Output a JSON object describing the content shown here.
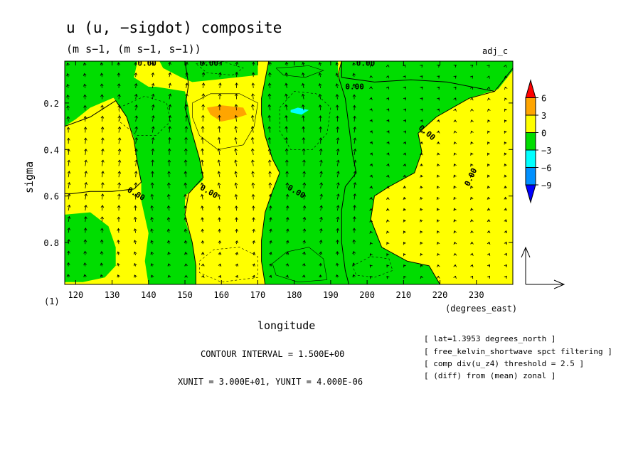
{
  "chart_data": {
    "type": "heatmap",
    "title": "u (u, −sigdot) composite",
    "subtitle": "(m s−1, (m s−1, s−1))",
    "tag": "adj_c",
    "xlabel": "longitude",
    "x_unit": "(degrees_east)",
    "ylabel": "sigma",
    "y_note": "(1)",
    "xlim": [
      117,
      240
    ],
    "ylim": [
      0.02,
      0.98
    ],
    "y_reversed": true,
    "x_ticks": [
      120,
      130,
      140,
      150,
      160,
      170,
      180,
      190,
      200,
      210,
      220,
      230
    ],
    "y_ticks": [
      0.2,
      0.4,
      0.6,
      0.8
    ],
    "colorbar": {
      "labels": [
        "6",
        "3",
        "0",
        "−3",
        "−6",
        "−9"
      ],
      "colors": [
        "#ff0000",
        "#ffa500",
        "#ffff00",
        "#00dd00",
        "#00ffff",
        "#0090ff",
        "#0000ff"
      ]
    },
    "zero_contour_label": "0.00",
    "zero_contours": [
      {
        "side": "left",
        "points": [
          [
            117,
            0.3
          ],
          [
            124,
            0.26
          ],
          [
            128,
            0.22
          ],
          [
            131,
            0.19
          ],
          [
            134,
            0.26
          ],
          [
            136,
            0.36
          ],
          [
            137,
            0.46
          ],
          [
            138,
            0.54
          ],
          [
            136,
            0.57
          ],
          [
            130,
            0.58
          ],
          [
            124,
            0.58
          ],
          [
            119,
            0.59
          ],
          [
            117,
            0.59
          ]
        ]
      },
      {
        "side": "center",
        "points": [
          [
            150,
            0.02
          ],
          [
            151,
            0.12
          ],
          [
            150,
            0.22
          ],
          [
            152,
            0.33
          ],
          [
            154,
            0.44
          ],
          [
            155,
            0.52
          ],
          [
            151,
            0.59
          ],
          [
            150,
            0.68
          ],
          [
            152,
            0.8
          ],
          [
            153,
            0.9
          ],
          [
            153,
            0.98
          ]
        ]
      },
      {
        "side": "center",
        "points": [
          [
            173,
            0.02
          ],
          [
            172,
            0.1
          ],
          [
            171,
            0.18
          ],
          [
            171,
            0.25
          ],
          [
            172,
            0.34
          ],
          [
            174,
            0.44
          ],
          [
            176,
            0.5
          ],
          [
            174,
            0.58
          ],
          [
            172,
            0.67
          ],
          [
            171,
            0.79
          ],
          [
            171,
            0.88
          ],
          [
            172,
            0.98
          ]
        ]
      },
      {
        "side": "right",
        "points": [
          [
            193,
            0.02
          ],
          [
            192,
            0.08
          ],
          [
            194,
            0.18
          ],
          [
            195,
            0.3
          ],
          [
            196,
            0.42
          ],
          [
            197,
            0.5
          ],
          [
            194,
            0.56
          ],
          [
            193,
            0.66
          ],
          [
            193,
            0.8
          ],
          [
            194,
            0.92
          ],
          [
            195,
            0.98
          ]
        ]
      },
      {
        "side": "right",
        "points": [
          [
            193,
            0.02
          ],
          [
            193,
            0.09
          ],
          [
            202,
            0.11
          ],
          [
            212,
            0.1
          ],
          [
            222,
            0.11
          ],
          [
            235,
            0.15
          ],
          [
            238,
            0.09
          ],
          [
            240,
            0.05
          ]
        ]
      },
      {
        "side": "right",
        "points": [
          [
            235,
            0.15
          ],
          [
            228,
            0.18
          ],
          [
            219,
            0.26
          ],
          [
            214,
            0.33
          ],
          [
            215,
            0.41
          ],
          [
            213,
            0.5
          ],
          [
            206,
            0.56
          ],
          [
            202,
            0.6
          ],
          [
            201,
            0.7
          ],
          [
            204,
            0.82
          ],
          [
            211,
            0.88
          ],
          [
            217,
            0.9
          ],
          [
            220,
            0.98
          ]
        ]
      }
    ],
    "regions": [
      {
        "value_range": "0 to 3",
        "color": "#ffff00",
        "points": "background"
      },
      {
        "value_range": "-3 to 0",
        "color": "#00dd00",
        "points": [
          [
            117,
            0.02
          ],
          [
            137,
            0.02
          ],
          [
            136,
            0.09
          ],
          [
            140,
            0.13
          ],
          [
            134,
            0.16
          ],
          [
            130,
            0.18
          ],
          [
            124,
            0.22
          ],
          [
            120,
            0.27
          ],
          [
            117,
            0.3
          ]
        ]
      },
      {
        "value_range": "-3 to 0",
        "color": "#00dd00",
        "points": [
          [
            128,
            0.13
          ],
          [
            142,
            0.13
          ],
          [
            150,
            0.15
          ],
          [
            151,
            0.22
          ],
          [
            152,
            0.33
          ],
          [
            154,
            0.44
          ],
          [
            155,
            0.53
          ],
          [
            150,
            0.6
          ],
          [
            150,
            0.7
          ],
          [
            152,
            0.8
          ],
          [
            153,
            0.9
          ],
          [
            153,
            0.98
          ],
          [
            140,
            0.98
          ],
          [
            139,
            0.88
          ],
          [
            140,
            0.76
          ],
          [
            138,
            0.62
          ],
          [
            138,
            0.54
          ],
          [
            137,
            0.46
          ],
          [
            136,
            0.35
          ],
          [
            134,
            0.26
          ],
          [
            131,
            0.19
          ]
        ]
      },
      {
        "value_range": "-3 to 0",
        "color": "#00dd00",
        "points": [
          [
            117,
            0.68
          ],
          [
            124,
            0.67
          ],
          [
            129,
            0.73
          ],
          [
            131,
            0.82
          ],
          [
            131,
            0.9
          ],
          [
            128,
            0.95
          ],
          [
            122,
            0.97
          ],
          [
            117,
            0.97
          ]
        ]
      },
      {
        "value_range": "-3 to 0",
        "color": "#00dd00",
        "points": [
          [
            143,
            0.02
          ],
          [
            170,
            0.02
          ],
          [
            170,
            0.08
          ],
          [
            158,
            0.1
          ],
          [
            152,
            0.11
          ],
          [
            149,
            0.09
          ],
          [
            144,
            0.05
          ]
        ]
      },
      {
        "value_range": "-3 to 0",
        "color": "#00dd00",
        "points": [
          [
            173,
            0.02
          ],
          [
            192,
            0.02
          ],
          [
            192,
            0.1
          ],
          [
            194,
            0.18
          ],
          [
            195,
            0.3
          ],
          [
            196,
            0.42
          ],
          [
            197,
            0.5
          ],
          [
            194,
            0.56
          ],
          [
            193,
            0.66
          ],
          [
            193,
            0.8
          ],
          [
            194,
            0.92
          ],
          [
            195,
            0.98
          ],
          [
            172,
            0.98
          ],
          [
            171,
            0.88
          ],
          [
            171,
            0.79
          ],
          [
            172,
            0.67
          ],
          [
            174,
            0.58
          ],
          [
            176,
            0.5
          ],
          [
            174,
            0.44
          ],
          [
            172,
            0.34
          ],
          [
            171,
            0.25
          ],
          [
            171,
            0.18
          ],
          [
            172,
            0.1
          ]
        ]
      },
      {
        "value_range": "-3 to 0",
        "color": "#00dd00",
        "points": [
          [
            193,
            0.02
          ],
          [
            240,
            0.02
          ],
          [
            240,
            0.06
          ],
          [
            236,
            0.14
          ],
          [
            228,
            0.18
          ],
          [
            219,
            0.26
          ],
          [
            214,
            0.33
          ],
          [
            215,
            0.41
          ],
          [
            213,
            0.5
          ],
          [
            206,
            0.56
          ],
          [
            202,
            0.6
          ],
          [
            201,
            0.7
          ],
          [
            204,
            0.82
          ],
          [
            211,
            0.88
          ],
          [
            217,
            0.9
          ],
          [
            220,
            0.98
          ],
          [
            195,
            0.98
          ],
          [
            194,
            0.92
          ],
          [
            193,
            0.8
          ],
          [
            193,
            0.66
          ],
          [
            194,
            0.56
          ],
          [
            197,
            0.5
          ],
          [
            196,
            0.42
          ],
          [
            195,
            0.3
          ],
          [
            194,
            0.18
          ],
          [
            192,
            0.1
          ]
        ]
      },
      {
        "value_range": "3 to 6",
        "color": "#ffa500",
        "points": [
          [
            156,
            0.22
          ],
          [
            160,
            0.21
          ],
          [
            166,
            0.22
          ],
          [
            167,
            0.25
          ],
          [
            163,
            0.27
          ],
          [
            160,
            0.28
          ],
          [
            157,
            0.25
          ]
        ]
      },
      {
        "value_range": "-6 to -3",
        "color": "#00ffff",
        "points": [
          [
            179,
            0.23
          ],
          [
            181,
            0.22
          ],
          [
            184,
            0.23
          ],
          [
            182,
            0.25
          ],
          [
            179,
            0.24
          ]
        ]
      }
    ],
    "contour_labels": [
      {
        "text": "0.00",
        "x": 137,
        "y": 0.04,
        "angle": 0
      },
      {
        "text": "0.00",
        "x": 154,
        "y": 0.04,
        "angle": 0
      },
      {
        "text": "0.00",
        "x": 197,
        "y": 0.04,
        "angle": 0
      },
      {
        "text": "0.00",
        "x": 194,
        "y": 0.14,
        "angle": 0
      },
      {
        "text": "0.00",
        "x": 214,
        "y": 0.31,
        "angle": 40
      },
      {
        "text": "0.00",
        "x": 134,
        "y": 0.58,
        "angle": 30
      },
      {
        "text": "0.00",
        "x": 154,
        "y": 0.57,
        "angle": 30
      },
      {
        "text": "0.00",
        "x": 178,
        "y": 0.57,
        "angle": 30
      },
      {
        "text": "0.00",
        "x": 228,
        "y": 0.56,
        "angle": -65
      }
    ],
    "thin_contours": [
      {
        "style": "dashed",
        "points": [
          [
            153,
            0.03
          ],
          [
            160,
            0.02
          ],
          [
            166,
            0.05
          ],
          [
            163,
            0.08
          ],
          [
            156,
            0.07
          ],
          [
            153,
            0.03
          ]
        ]
      },
      {
        "style": "solid",
        "points": [
          [
            175,
            0.05
          ],
          [
            184,
            0.04
          ],
          [
            188,
            0.06
          ],
          [
            183,
            0.09
          ],
          [
            177,
            0.08
          ],
          [
            175,
            0.05
          ]
        ]
      },
      {
        "style": "dashed",
        "points": [
          [
            132,
            0.22
          ],
          [
            139,
            0.17
          ],
          [
            145,
            0.2
          ],
          [
            146,
            0.28
          ],
          [
            142,
            0.34
          ],
          [
            137,
            0.34
          ],
          [
            132,
            0.28
          ],
          [
            132,
            0.22
          ]
        ]
      },
      {
        "style": "solid",
        "points": [
          [
            152,
            0.2
          ],
          [
            157,
            0.16
          ],
          [
            165,
            0.16
          ],
          [
            170,
            0.2
          ],
          [
            169,
            0.3
          ],
          [
            166,
            0.38
          ],
          [
            159,
            0.4
          ],
          [
            154,
            0.34
          ],
          [
            152,
            0.26
          ],
          [
            152,
            0.2
          ]
        ]
      },
      {
        "style": "dashed",
        "points": [
          [
            176,
            0.22
          ],
          [
            180,
            0.15
          ],
          [
            186,
            0.16
          ],
          [
            190,
            0.22
          ],
          [
            189,
            0.33
          ],
          [
            185,
            0.4
          ],
          [
            179,
            0.4
          ],
          [
            176,
            0.32
          ],
          [
            176,
            0.22
          ]
        ]
      },
      {
        "style": "dashed",
        "points": [
          [
            154,
            0.88
          ],
          [
            158,
            0.83
          ],
          [
            165,
            0.82
          ],
          [
            170,
            0.86
          ],
          [
            170,
            0.95
          ],
          [
            160,
            0.97
          ],
          [
            154,
            0.93
          ],
          [
            154,
            0.88
          ]
        ]
      },
      {
        "style": "solid",
        "points": [
          [
            174,
            0.89
          ],
          [
            178,
            0.84
          ],
          [
            184,
            0.82
          ],
          [
            188,
            0.87
          ],
          [
            189,
            0.96
          ],
          [
            181,
            0.97
          ],
          [
            175,
            0.94
          ],
          [
            174,
            0.89
          ]
        ]
      },
      {
        "style": "dashed",
        "points": [
          [
            196,
            0.9
          ],
          [
            201,
            0.86
          ],
          [
            206,
            0.87
          ],
          [
            207,
            0.92
          ],
          [
            202,
            0.95
          ],
          [
            197,
            0.94
          ],
          [
            196,
            0.9
          ]
        ]
      }
    ],
    "vector_field": {
      "x_range": [
        118,
        238
      ],
      "y_range": [
        0.04,
        0.95
      ],
      "nx": 27,
      "ny": 20,
      "reference_vector": {
        "u": 30,
        "v": 4e-06
      }
    },
    "footer": {
      "contour_interval": "CONTOUR INTERVAL = 1.500E+00",
      "units": "XUNIT = 3.000E+01, YUNIT = 4.000E-06"
    },
    "notes": [
      "[ lat=1.3953 degrees_north ]",
      "[ free_kelvin_shortwave spct filtering ]",
      "[ comp div(u_z4) threshold = 2.5 ]",
      "[ (diff) from (mean) zonal ]"
    ],
    "grid": false,
    "legend": "right"
  }
}
